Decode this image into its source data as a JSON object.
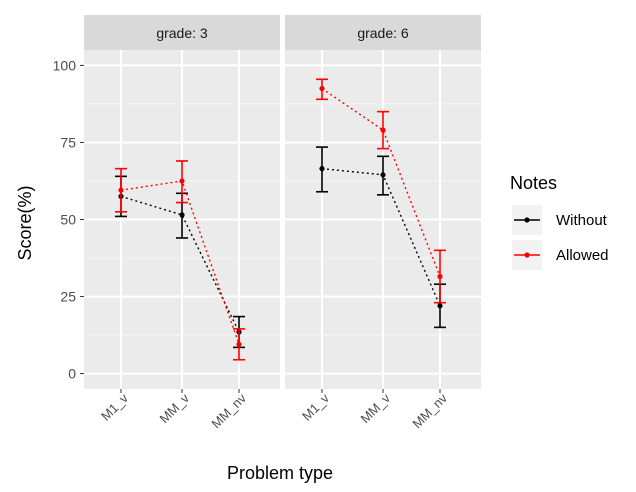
{
  "chart_data": {
    "type": "line",
    "facet_label_prefix": "grade: ",
    "facets": [
      {
        "label": "grade: 3",
        "series": [
          {
            "name": "Without",
            "y": [
              57.5,
              51.5,
              13.5
            ],
            "lower": [
              51,
              44,
              8.5
            ],
            "upper": [
              64,
              58.5,
              18.5
            ]
          },
          {
            "name": "Allowed",
            "y": [
              59.5,
              62.5,
              9.5
            ],
            "lower": [
              52.5,
              55.5,
              4.5
            ],
            "upper": [
              66.5,
              69,
              14.5
            ]
          }
        ]
      },
      {
        "label": "grade: 6",
        "series": [
          {
            "name": "Without",
            "y": [
              66.5,
              64.5,
              22
            ],
            "lower": [
              59,
              58,
              15
            ],
            "upper": [
              73.5,
              70.5,
              29
            ]
          },
          {
            "name": "Allowed",
            "y": [
              92.5,
              79,
              31.5
            ],
            "lower": [
              89,
              73,
              23
            ],
            "upper": [
              95.5,
              85,
              40
            ]
          }
        ]
      }
    ],
    "categories": [
      "M1_v",
      "MM_v",
      "MM_nv"
    ],
    "xlabel": "Problem type",
    "ylabel": "Score(%)",
    "ylim": [
      -5,
      105
    ],
    "yticks": [
      0,
      25,
      50,
      75,
      100
    ],
    "grid": true,
    "legend": {
      "title": "Notes",
      "placement": "right",
      "entries": [
        {
          "name": "Without",
          "color": "#000000"
        },
        {
          "name": "Allowed",
          "color": "#ff0000"
        }
      ]
    },
    "colors": {
      "Without": "#000000",
      "Allowed": "#ff0000"
    }
  }
}
